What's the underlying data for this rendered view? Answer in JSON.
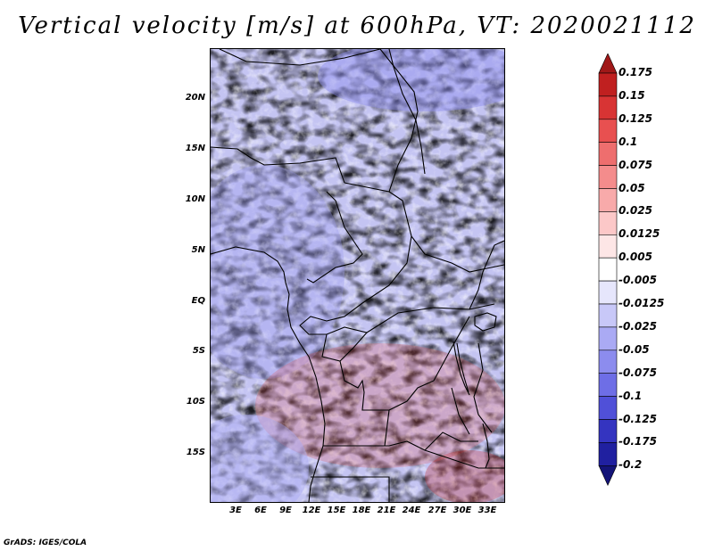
{
  "title": "Vertical velocity [m/s] at 600hPa, VT: 2020021112",
  "footer": "GrADS: IGES/COLA",
  "map": {
    "lat_ticks": [
      "20N",
      "15N",
      "10N",
      "5N",
      "EQ",
      "5S",
      "10S",
      "15S"
    ],
    "lon_ticks": [
      "3E",
      "6E",
      "9E",
      "12E",
      "15E",
      "18E",
      "21E",
      "24E",
      "27E",
      "30E",
      "33E"
    ],
    "lat_range": [
      -20,
      24
    ],
    "lon_range": [
      0,
      35
    ]
  },
  "colorbar": {
    "labels": [
      "0.175",
      "0.15",
      "0.125",
      "0.1",
      "0.075",
      "0.05",
      "0.025",
      "0.0125",
      "0.005",
      "-0.005",
      "-0.0125",
      "-0.025",
      "-0.05",
      "-0.075",
      "-0.1",
      "-0.125",
      "-0.175",
      "-0.2"
    ],
    "colors": [
      "#a01818",
      "#c02020",
      "#d83434",
      "#e85050",
      "#ee6e6e",
      "#f48c8c",
      "#f8aaaa",
      "#fcc8c8",
      "#fde6e6",
      "#ffffff",
      "#e6e6fc",
      "#c8c8f8",
      "#aaaaf4",
      "#8c8cee",
      "#6e6ee6",
      "#5050d8",
      "#3434c0",
      "#2020a0",
      "#141478"
    ]
  }
}
